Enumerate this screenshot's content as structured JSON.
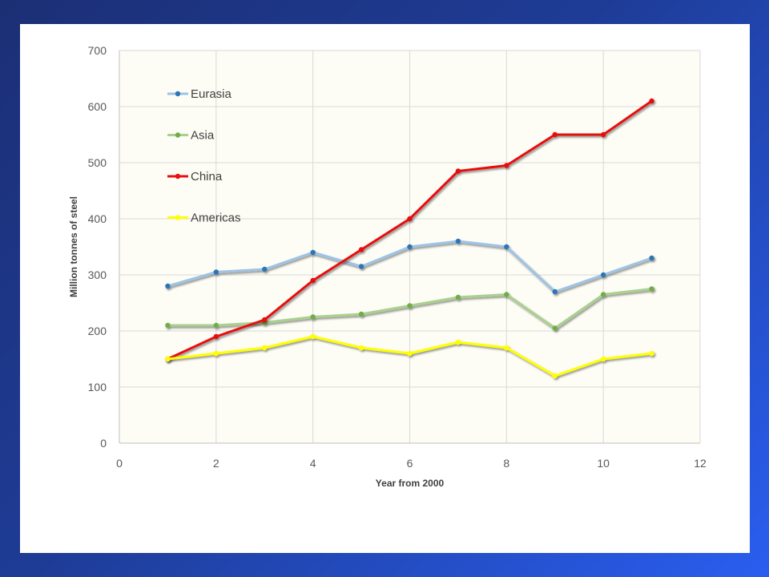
{
  "chart_data": {
    "type": "line",
    "title": "",
    "xlabel": "Year from 2000",
    "ylabel": "Million tonnes of steel",
    "xlim": [
      0,
      12
    ],
    "ylim": [
      0,
      700
    ],
    "x_ticks": [
      0,
      2,
      4,
      6,
      8,
      10,
      12
    ],
    "y_ticks": [
      0,
      100,
      200,
      300,
      400,
      500,
      600,
      700
    ],
    "grid": true,
    "legend_position": "top-left, inside plot area",
    "plot_background": "#fdfdf5",
    "series": [
      {
        "name": "Eurasia",
        "color": "#9dc3e6",
        "marker_color": "#2e75b6",
        "x": [
          1,
          2,
          3,
          4,
          5,
          6,
          7,
          8,
          9,
          10,
          11
        ],
        "y": [
          280,
          305,
          310,
          340,
          315,
          350,
          360,
          350,
          270,
          300,
          330
        ]
      },
      {
        "name": "Asia",
        "color": "#a9d18e",
        "marker_color": "#70ad47",
        "x": [
          1,
          2,
          3,
          4,
          5,
          6,
          7,
          8,
          9,
          10,
          11
        ],
        "y": [
          210,
          210,
          215,
          225,
          230,
          245,
          260,
          265,
          205,
          265,
          275
        ]
      },
      {
        "name": "China",
        "color": "#e81010",
        "marker_color": "#e81010",
        "x": [
          1,
          2,
          3,
          4,
          5,
          6,
          7,
          8,
          9,
          10,
          11
        ],
        "y": [
          150,
          190,
          220,
          290,
          345,
          400,
          485,
          495,
          550,
          550,
          610
        ]
      },
      {
        "name": "Americas",
        "color": "#ffff00",
        "marker_color": "#ffff00",
        "x": [
          1,
          2,
          3,
          4,
          5,
          6,
          7,
          8,
          9,
          10,
          11
        ],
        "y": [
          150,
          160,
          170,
          190,
          170,
          160,
          180,
          170,
          120,
          150,
          160
        ]
      }
    ]
  }
}
